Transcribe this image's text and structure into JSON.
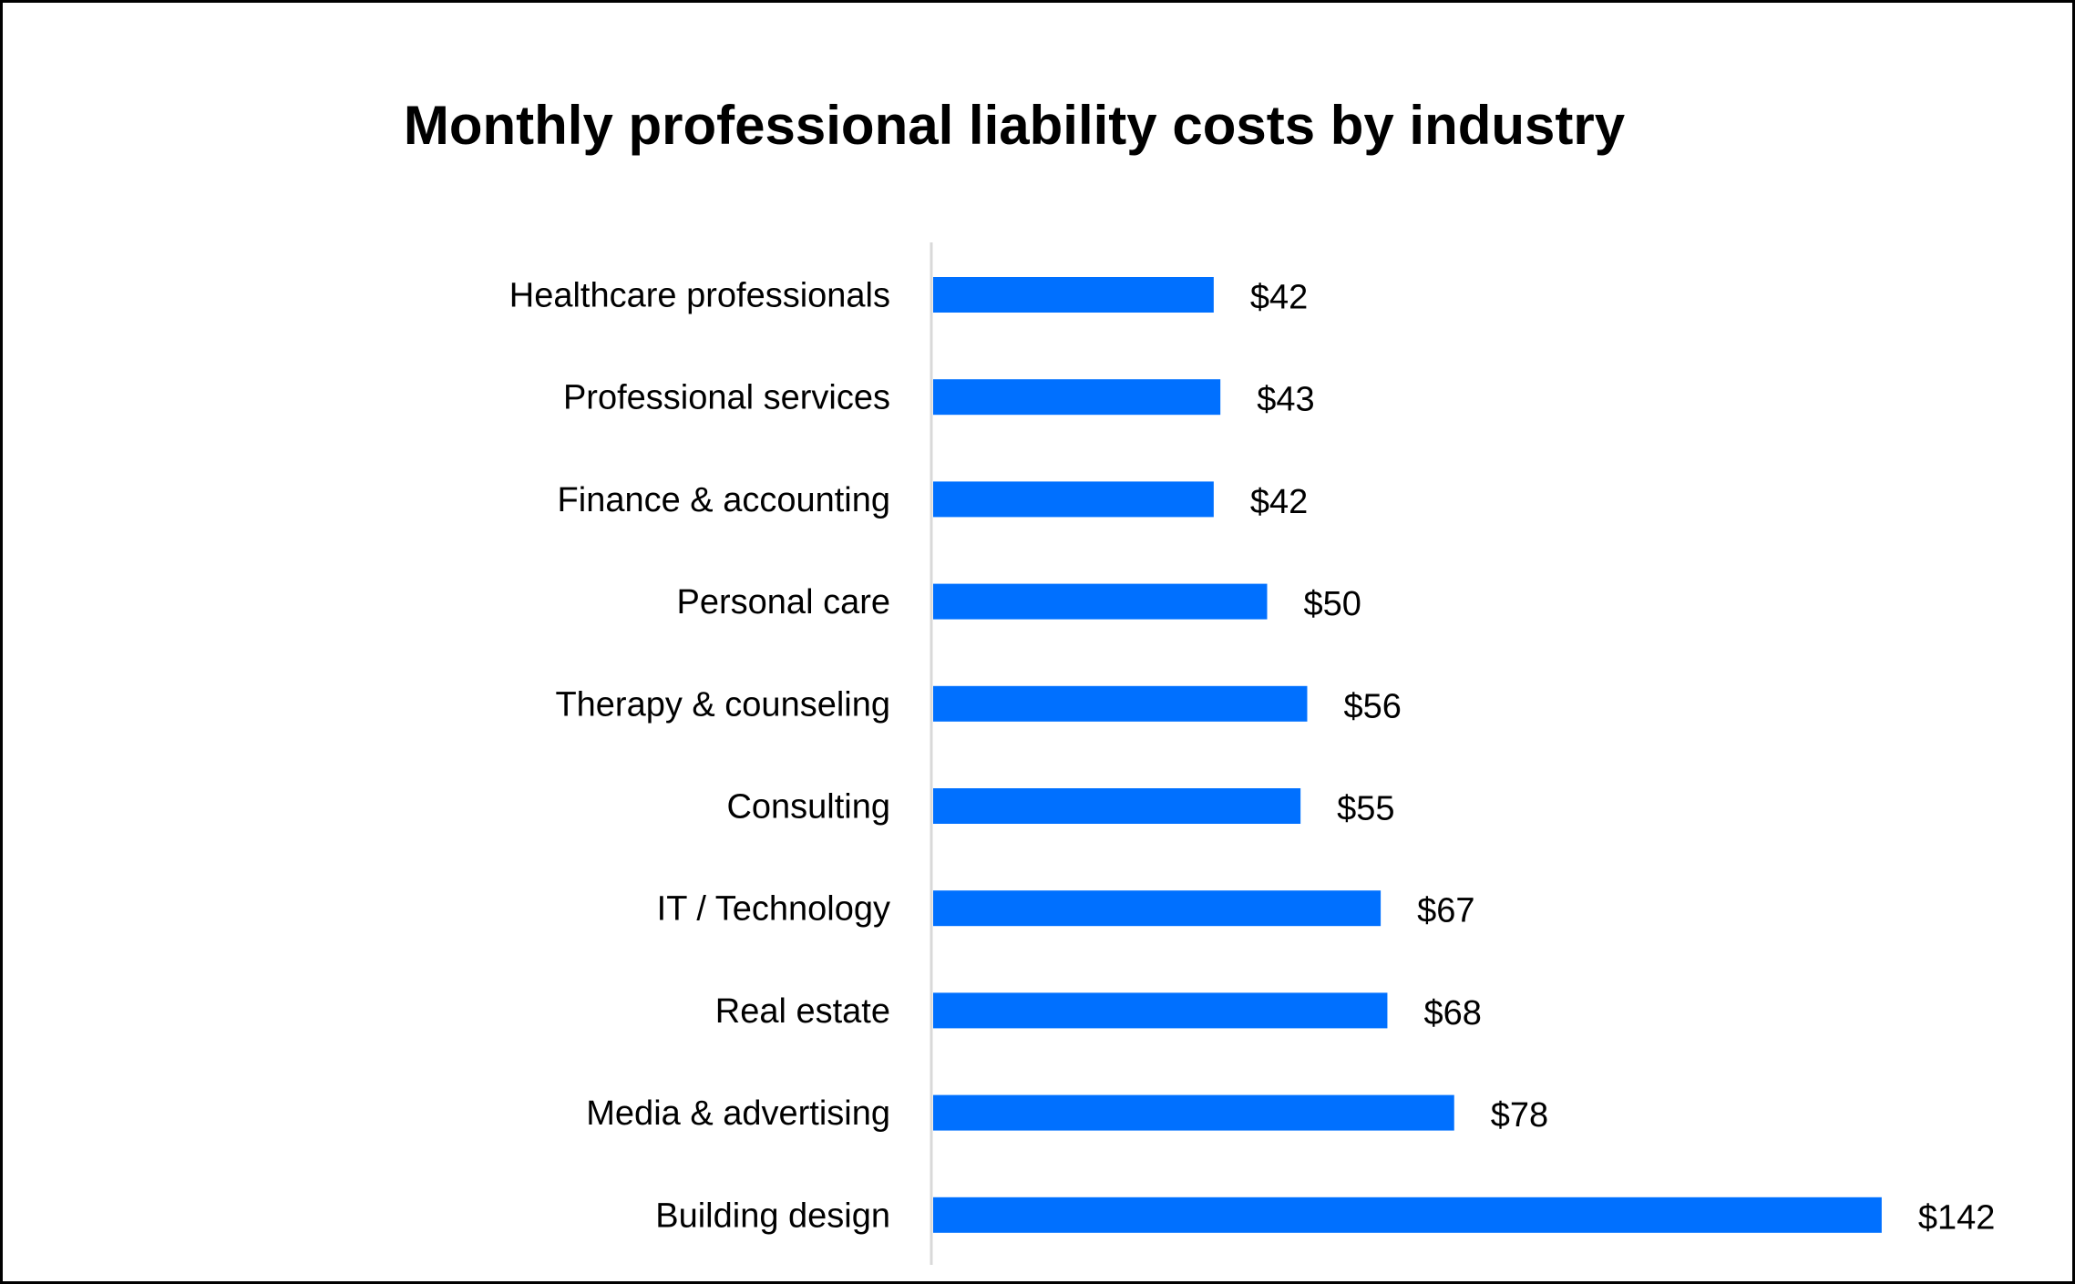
{
  "chart_data": {
    "type": "bar",
    "orientation": "horizontal",
    "title": "Monthly professional liability costs by industry",
    "categories": [
      "Healthcare professionals",
      "Professional services",
      "Finance & accounting",
      "Personal care",
      "Therapy & counseling",
      "Consulting",
      "IT / Technology",
      "Real estate",
      "Media & advertising",
      "Building design"
    ],
    "values": [
      42,
      43,
      42,
      50,
      56,
      55,
      67,
      68,
      78,
      142
    ],
    "data_labels": [
      "$42",
      "$43",
      "$42",
      "$50",
      "$56",
      "$55",
      "$67",
      "$68",
      "$78",
      "$142"
    ],
    "xlabel": "",
    "ylabel": "",
    "xlim": [
      0,
      142
    ],
    "grid": false,
    "legend": "none",
    "bar_color": "#0070FF",
    "axis_color": "#D9D9D9"
  }
}
